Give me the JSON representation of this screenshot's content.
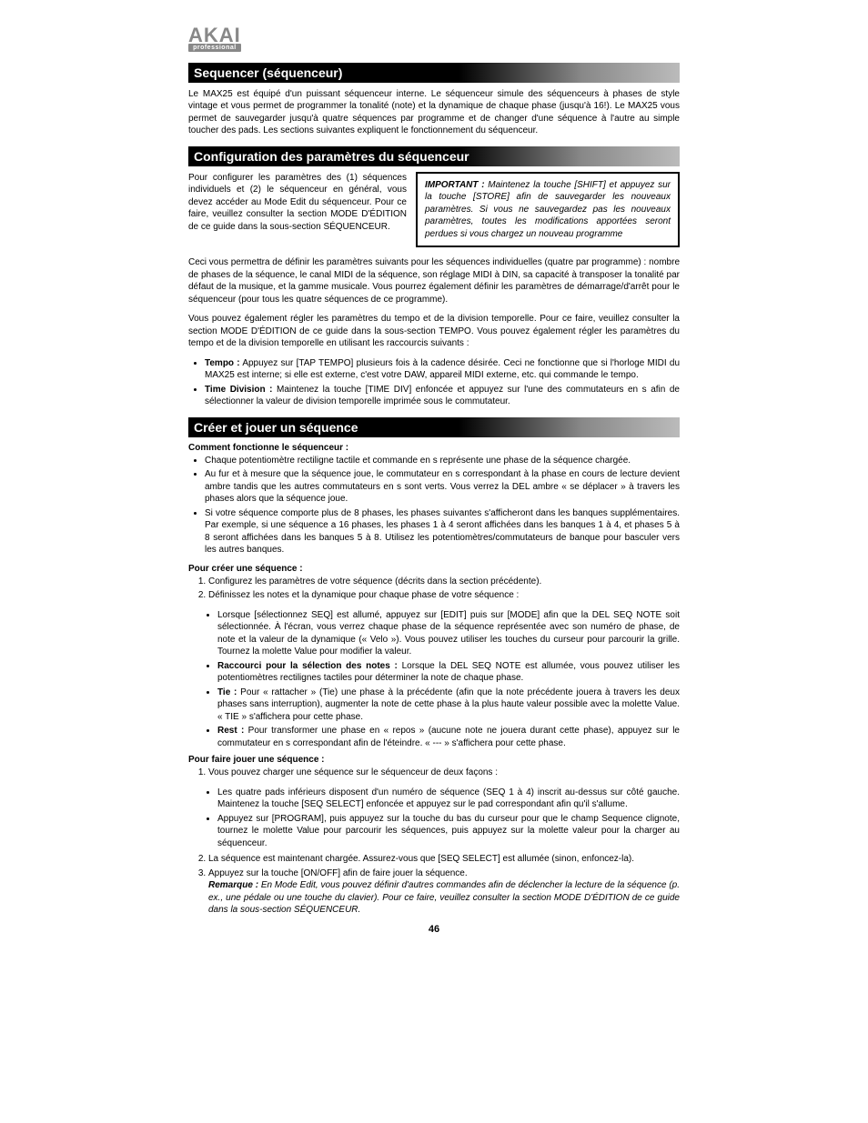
{
  "logo": {
    "brand": "AKAI",
    "sub": "professional"
  },
  "sections": {
    "h1": "Sequencer (séquenceur)",
    "p1": "Le MAX25 est équipé d'un puissant séquenceur interne. Le séquenceur simule des séquenceurs à phases de style vintage et vous permet de programmer la tonalité (note) et la dynamique de chaque phase (jusqu'à 16!). Le MAX25 vous permet de sauvegarder jusqu'à quatre séquences par programme et de changer d'une séquence à l'autre au simple toucher des pads. Les sections suivantes expliquent le fonctionnement du séquenceur.",
    "h2": "Configuration des paramètres du séquenceur",
    "config_left_1": "Pour configurer les paramètres des (1) séquences individuels et (2) le séquenceur en général, vous devez accéder au Mode Edit du séquenceur. Pour ce faire, veuillez consulter la section ",
    "config_left_2": "MODE D'ÉDITION",
    "config_left_3": " de ce guide dans la sous-section ",
    "config_left_4": "SÉQUENCEUR.",
    "callout_label": "IMPORTANT :",
    "callout_text": " Maintenez la touche [SHIFT] et appuyez sur la touche [STORE] afin de sauvegarder les nouveaux paramètres. Si vous ne sauvegardez pas les nouveaux paramètres, toutes les modifications apportées seront perdues si vous chargez un nouveau programme",
    "p2": "Ceci vous permettra de définir les paramètres suivants pour les séquences individuelles (quatre par programme) : nombre de phases de la séquence, le canal MIDI de la séquence, son réglage MIDI à DIN, sa capacité à transposer la tonalité par défaut de la musique, et la gamme musicale. Vous pourrez également définir les paramètres de démarrage/d'arrêt pour le séquenceur (pour tous les quatre séquences de ce programme).",
    "p3a": "Vous pouvez également régler les paramètres du tempo et de la division temporelle. Pour ce faire, veuillez consulter la section ",
    "p3b": "MODE D'ÉDITION",
    "p3c": " de ce guide dans la sous-section ",
    "p3d": "TEMPO.",
    "p3e": " Vous pouvez également régler les paramètres du tempo et de la division temporelle en utilisant les raccourcis suivants :",
    "bullets1": [
      {
        "b": "Tempo :",
        "t": " Appuyez sur [TAP TEMPO] plusieurs fois à la cadence désirée. Ceci ne fonctionne que si l'horloge MIDI du MAX25 est interne; si elle est externe, c'est votre DAW, appareil MIDI externe, etc. qui commande le tempo."
      },
      {
        "b": "Time Division :",
        "t": " Maintenez la touche [TIME DIV] enfoncée et appuyez sur l'une des commutateurs en s afin de sélectionner la valeur de division temporelle imprimée sous le commutateur."
      }
    ],
    "h3": "Créer et jouer un séquence",
    "sub1": "Comment fonctionne le séquenceur :",
    "bullets2": [
      "Chaque potentiomètre rectiligne tactile et commande en s représente une phase de la séquence chargée.",
      "Au fur et à mesure que la séquence joue, le commutateur en s correspondant à la phase en cours de lecture devient ambre tandis que les autres commutateurs en s sont verts. Vous verrez la DEL ambre « se déplacer » à travers les phases alors que la séquence joue.",
      "Si votre séquence comporte plus de 8 phases, les phases suivantes s'afficheront dans les banques supplémentaires. Par exemple, si une séquence a 16 phases, les phases 1 à 4 seront affichées dans les banques 1 à 4, et phases 5 à 8 seront affichées dans les banques 5 à 8. Utilisez les potentiomètres/commutateurs de banque pour basculer vers les autres banques."
    ],
    "sub2": "Pour créer une séquence :",
    "ol1": [
      "Configurez les paramètres de votre séquence (décrits dans la section précédente).",
      "Définissez les notes et la dynamique pour chaque phase de votre séquence :"
    ],
    "sub_bullets_create": [
      {
        "b": "",
        "t": "Lorsque [sélectionnez SEQ] est allumé, appuyez sur [EDIT] puis sur [MODE] afin que la DEL SEQ NOTE soit sélectionnée. À l'écran, vous verrez chaque phase de la séquence représentée avec son numéro de phase, de note et la valeur de la dynamique (« Velo »). Vous pouvez utiliser les touches du curseur pour parcourir la grille. Tournez la molette Value pour modifier la valeur."
      },
      {
        "b": "Raccourci pour la sélection des notes :",
        "t": " Lorsque la DEL SEQ NOTE est allumée, vous pouvez utiliser les potentiomètres rectilignes tactiles pour déterminer la note de chaque phase."
      },
      {
        "b": "Tie :",
        "t": " Pour « rattacher » (Tie) une phase à la précédente (afin que la note précédente jouera à travers les deux phases sans interruption), augmenter la note de cette phase à la plus haute valeur possible avec la molette Value. « TIE » s'affichera pour cette phase."
      },
      {
        "b": "Rest :",
        "t": " Pour transformer une phase en « repos » (aucune note ne jouera durant cette phase), appuyez sur le commutateur en s correspondant afin de l'éteindre. « --- » s'affichera pour cette phase."
      }
    ],
    "sub3": "Pour faire jouer une séquence :",
    "ol2_1": "Vous pouvez charger une séquence sur le séquenceur de deux façons :",
    "sub_bullets_play": [
      "Les quatre pads inférieurs disposent d'un numéro de séquence (SEQ 1 à 4) inscrit au-dessus sur côté gauche. Maintenez la touche [SEQ SELECT] enfoncée et appuyez sur le pad correspondant afin qu'il s'allume.",
      "Appuyez sur [PROGRAM], puis appuyez sur la touche du bas du curseur pour que le champ Sequence clignote, tournez le molette Value pour parcourir les séquences, puis appuyez sur la molette valeur pour la charger au séquenceur."
    ],
    "ol2_2": "La séquence est maintenant chargée. Assurez-vous que [SEQ SELECT] est allumée (sinon, enfoncez-la).",
    "ol2_3": "Appuyez sur la touche [ON/OFF] afin de faire jouer la séquence.",
    "remark_b": "Remarque :",
    "remark_t": " En Mode Edit, vous pouvez définir d'autres commandes afin de déclencher la lecture de la séquence (p. ex., une pédale ou une touche du clavier). Pour ce faire, veuillez consulter la section MODE D'ÉDITION de ce guide dans la sous-section SÉQUENCEUR.",
    "page_number": "46"
  }
}
